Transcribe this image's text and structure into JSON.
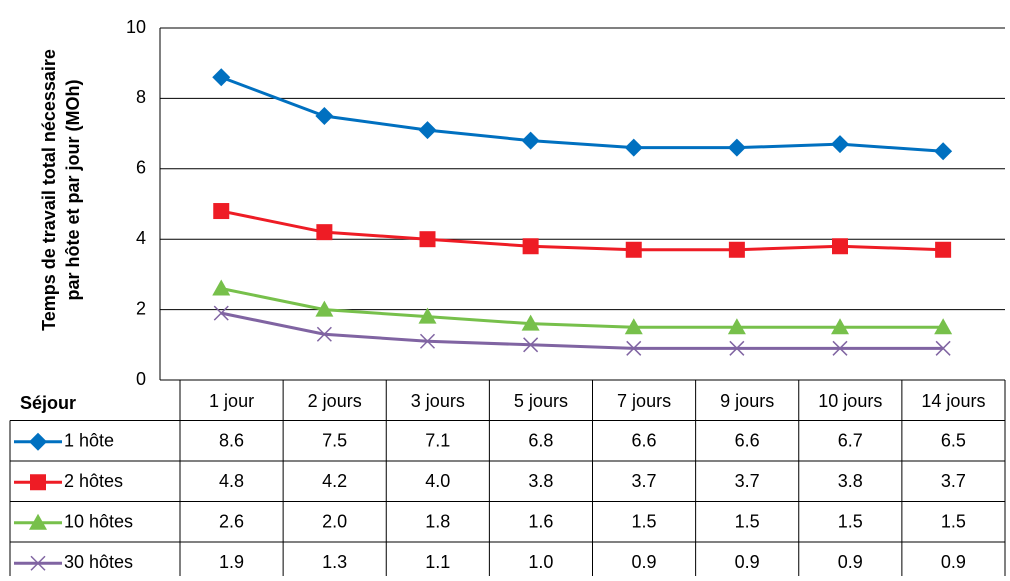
{
  "chart_data": {
    "type": "line",
    "ylabel": [
      "Temps de travail total nécessaire",
      "par hôte et par jour (MOh)"
    ],
    "table_header": "Séjour",
    "categories": [
      "1 jour",
      "2 jours",
      "3 jours",
      "5 jours",
      "7 jours",
      "9 jours",
      "10 jours",
      "14 jours"
    ],
    "ylim": [
      0,
      10
    ],
    "yticks": [
      0,
      2,
      4,
      6,
      8,
      10
    ],
    "grid": true,
    "series": [
      {
        "name": "1 hôte",
        "color": "#0070c0",
        "marker": "diamond",
        "values": [
          8.6,
          7.5,
          7.1,
          6.8,
          6.6,
          6.6,
          6.7,
          6.5
        ],
        "value_labels": [
          "8.6",
          "7.5",
          "7.1",
          "6.8",
          "6.6",
          "6.6",
          "6.7",
          "6.5"
        ]
      },
      {
        "name": "2 hôtes",
        "color": "#ee1c25",
        "marker": "square",
        "values": [
          4.8,
          4.2,
          4.0,
          3.8,
          3.7,
          3.7,
          3.8,
          3.7
        ],
        "value_labels": [
          "4.8",
          "4.2",
          "4.0",
          "3.8",
          "3.7",
          "3.7",
          "3.8",
          "3.7"
        ]
      },
      {
        "name": "10 hôtes",
        "color": "#77c04b",
        "marker": "triangle",
        "values": [
          2.6,
          2.0,
          1.8,
          1.6,
          1.5,
          1.5,
          1.5,
          1.5
        ],
        "value_labels": [
          "2.6",
          "2.0",
          "1.8",
          "1.6",
          "1.5",
          "1.5",
          "1.5",
          "1.5"
        ]
      },
      {
        "name": "30 hôtes",
        "color": "#8064a2",
        "marker": "x",
        "values": [
          1.9,
          1.3,
          1.1,
          1.0,
          0.9,
          0.9,
          0.9,
          0.9
        ],
        "value_labels": [
          "1.9",
          "1.3",
          "1.1",
          "1.0",
          "0.9",
          "0.9",
          "0.9",
          "0.9"
        ]
      }
    ]
  }
}
